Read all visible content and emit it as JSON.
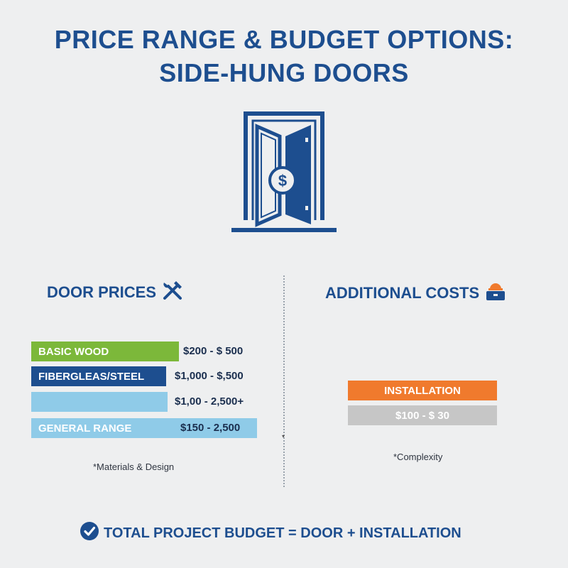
{
  "title": {
    "line1": "PRICE RANGE & BUDGET OPTIONS:",
    "line2": "SIDE-HUNG DOORS"
  },
  "icons": {
    "hero": "open-door-dollar-icon",
    "door_prices": "hammer-wrench-icon",
    "additional_costs": "hardhat-toolbox-icon",
    "footer": "checkmark-circle-icon"
  },
  "colors": {
    "brand": "#1d4e8f",
    "basic_wood": "#7cb83a",
    "fiberglass": "#1d4e8f",
    "light_blue": "#8fcbe8",
    "installation": "#f07a2d",
    "installation_price": "#c6c6c6",
    "background": "#eeeff0"
  },
  "door_prices": {
    "heading": "DOOR PRICES",
    "rows": [
      {
        "label": "BASIC WOOD",
        "price": "$200 - $ 500"
      },
      {
        "label": "FIBERGLEAS/STEEL",
        "price": "$1,000 - $,500"
      },
      {
        "label": "",
        "price": "$1,00 - 2,500+"
      },
      {
        "label": "GENERAL RANGE",
        "price": "$150 - 2,500"
      }
    ],
    "note": "*Materials & Design"
  },
  "additional_costs": {
    "heading": "ADDITIONAL COSTS",
    "installation_label": "INSTALLATION",
    "installation_price": "$100 - $ 30",
    "note": "*Complexity"
  },
  "footer": {
    "text": "TOTAL PROJECT BUDGET = DOOR + INSTALLATION"
  }
}
